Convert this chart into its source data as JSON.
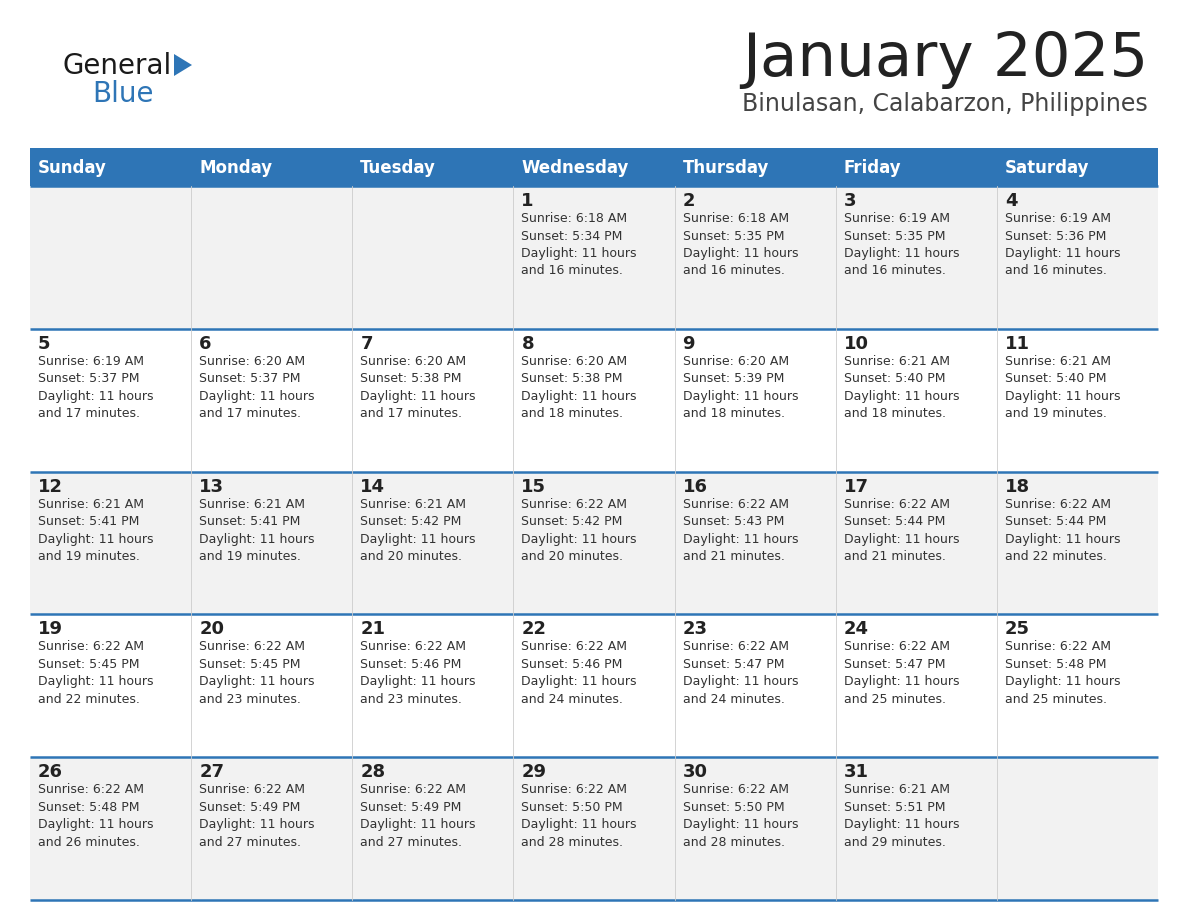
{
  "title": "January 2025",
  "subtitle": "Binulasan, Calabarzon, Philippines",
  "header_bg": "#2E75B6",
  "header_text_color": "#FFFFFF",
  "row_bg_odd": "#F2F2F2",
  "row_bg_even": "#FFFFFF",
  "cell_border_color": "#2E75B6",
  "day_headers": [
    "Sunday",
    "Monday",
    "Tuesday",
    "Wednesday",
    "Thursday",
    "Friday",
    "Saturday"
  ],
  "title_color": "#222222",
  "subtitle_color": "#444444",
  "day_num_color": "#222222",
  "cell_text_color": "#333333",
  "calendar": [
    [
      {
        "day": "",
        "sunrise": "",
        "sunset": "",
        "daylight_h": "",
        "daylight_m": ""
      },
      {
        "day": "",
        "sunrise": "",
        "sunset": "",
        "daylight_h": "",
        "daylight_m": ""
      },
      {
        "day": "",
        "sunrise": "",
        "sunset": "",
        "daylight_h": "",
        "daylight_m": ""
      },
      {
        "day": "1",
        "sunrise": "6:18 AM",
        "sunset": "5:34 PM",
        "daylight_h": "11 hours",
        "daylight_m": "and 16 minutes."
      },
      {
        "day": "2",
        "sunrise": "6:18 AM",
        "sunset": "5:35 PM",
        "daylight_h": "11 hours",
        "daylight_m": "and 16 minutes."
      },
      {
        "day": "3",
        "sunrise": "6:19 AM",
        "sunset": "5:35 PM",
        "daylight_h": "11 hours",
        "daylight_m": "and 16 minutes."
      },
      {
        "day": "4",
        "sunrise": "6:19 AM",
        "sunset": "5:36 PM",
        "daylight_h": "11 hours",
        "daylight_m": "and 16 minutes."
      }
    ],
    [
      {
        "day": "5",
        "sunrise": "6:19 AM",
        "sunset": "5:37 PM",
        "daylight_h": "11 hours",
        "daylight_m": "and 17 minutes."
      },
      {
        "day": "6",
        "sunrise": "6:20 AM",
        "sunset": "5:37 PM",
        "daylight_h": "11 hours",
        "daylight_m": "and 17 minutes."
      },
      {
        "day": "7",
        "sunrise": "6:20 AM",
        "sunset": "5:38 PM",
        "daylight_h": "11 hours",
        "daylight_m": "and 17 minutes."
      },
      {
        "day": "8",
        "sunrise": "6:20 AM",
        "sunset": "5:38 PM",
        "daylight_h": "11 hours",
        "daylight_m": "and 18 minutes."
      },
      {
        "day": "9",
        "sunrise": "6:20 AM",
        "sunset": "5:39 PM",
        "daylight_h": "11 hours",
        "daylight_m": "and 18 minutes."
      },
      {
        "day": "10",
        "sunrise": "6:21 AM",
        "sunset": "5:40 PM",
        "daylight_h": "11 hours",
        "daylight_m": "and 18 minutes."
      },
      {
        "day": "11",
        "sunrise": "6:21 AM",
        "sunset": "5:40 PM",
        "daylight_h": "11 hours",
        "daylight_m": "and 19 minutes."
      }
    ],
    [
      {
        "day": "12",
        "sunrise": "6:21 AM",
        "sunset": "5:41 PM",
        "daylight_h": "11 hours",
        "daylight_m": "and 19 minutes."
      },
      {
        "day": "13",
        "sunrise": "6:21 AM",
        "sunset": "5:41 PM",
        "daylight_h": "11 hours",
        "daylight_m": "and 19 minutes."
      },
      {
        "day": "14",
        "sunrise": "6:21 AM",
        "sunset": "5:42 PM",
        "daylight_h": "11 hours",
        "daylight_m": "and 20 minutes."
      },
      {
        "day": "15",
        "sunrise": "6:22 AM",
        "sunset": "5:42 PM",
        "daylight_h": "11 hours",
        "daylight_m": "and 20 minutes."
      },
      {
        "day": "16",
        "sunrise": "6:22 AM",
        "sunset": "5:43 PM",
        "daylight_h": "11 hours",
        "daylight_m": "and 21 minutes."
      },
      {
        "day": "17",
        "sunrise": "6:22 AM",
        "sunset": "5:44 PM",
        "daylight_h": "11 hours",
        "daylight_m": "and 21 minutes."
      },
      {
        "day": "18",
        "sunrise": "6:22 AM",
        "sunset": "5:44 PM",
        "daylight_h": "11 hours",
        "daylight_m": "and 22 minutes."
      }
    ],
    [
      {
        "day": "19",
        "sunrise": "6:22 AM",
        "sunset": "5:45 PM",
        "daylight_h": "11 hours",
        "daylight_m": "and 22 minutes."
      },
      {
        "day": "20",
        "sunrise": "6:22 AM",
        "sunset": "5:45 PM",
        "daylight_h": "11 hours",
        "daylight_m": "and 23 minutes."
      },
      {
        "day": "21",
        "sunrise": "6:22 AM",
        "sunset": "5:46 PM",
        "daylight_h": "11 hours",
        "daylight_m": "and 23 minutes."
      },
      {
        "day": "22",
        "sunrise": "6:22 AM",
        "sunset": "5:46 PM",
        "daylight_h": "11 hours",
        "daylight_m": "and 24 minutes."
      },
      {
        "day": "23",
        "sunrise": "6:22 AM",
        "sunset": "5:47 PM",
        "daylight_h": "11 hours",
        "daylight_m": "and 24 minutes."
      },
      {
        "day": "24",
        "sunrise": "6:22 AM",
        "sunset": "5:47 PM",
        "daylight_h": "11 hours",
        "daylight_m": "and 25 minutes."
      },
      {
        "day": "25",
        "sunrise": "6:22 AM",
        "sunset": "5:48 PM",
        "daylight_h": "11 hours",
        "daylight_m": "and 25 minutes."
      }
    ],
    [
      {
        "day": "26",
        "sunrise": "6:22 AM",
        "sunset": "5:48 PM",
        "daylight_h": "11 hours",
        "daylight_m": "and 26 minutes."
      },
      {
        "day": "27",
        "sunrise": "6:22 AM",
        "sunset": "5:49 PM",
        "daylight_h": "11 hours",
        "daylight_m": "and 27 minutes."
      },
      {
        "day": "28",
        "sunrise": "6:22 AM",
        "sunset": "5:49 PM",
        "daylight_h": "11 hours",
        "daylight_m": "and 27 minutes."
      },
      {
        "day": "29",
        "sunrise": "6:22 AM",
        "sunset": "5:50 PM",
        "daylight_h": "11 hours",
        "daylight_m": "and 28 minutes."
      },
      {
        "day": "30",
        "sunrise": "6:22 AM",
        "sunset": "5:50 PM",
        "daylight_h": "11 hours",
        "daylight_m": "and 28 minutes."
      },
      {
        "day": "31",
        "sunrise": "6:21 AM",
        "sunset": "5:51 PM",
        "daylight_h": "11 hours",
        "daylight_m": "and 29 minutes."
      },
      {
        "day": "",
        "sunrise": "",
        "sunset": "",
        "daylight_h": "",
        "daylight_m": ""
      }
    ]
  ],
  "logo_general_color": "#1a1a1a",
  "logo_blue_color": "#2E75B6",
  "logo_triangle_color": "#2E75B6"
}
